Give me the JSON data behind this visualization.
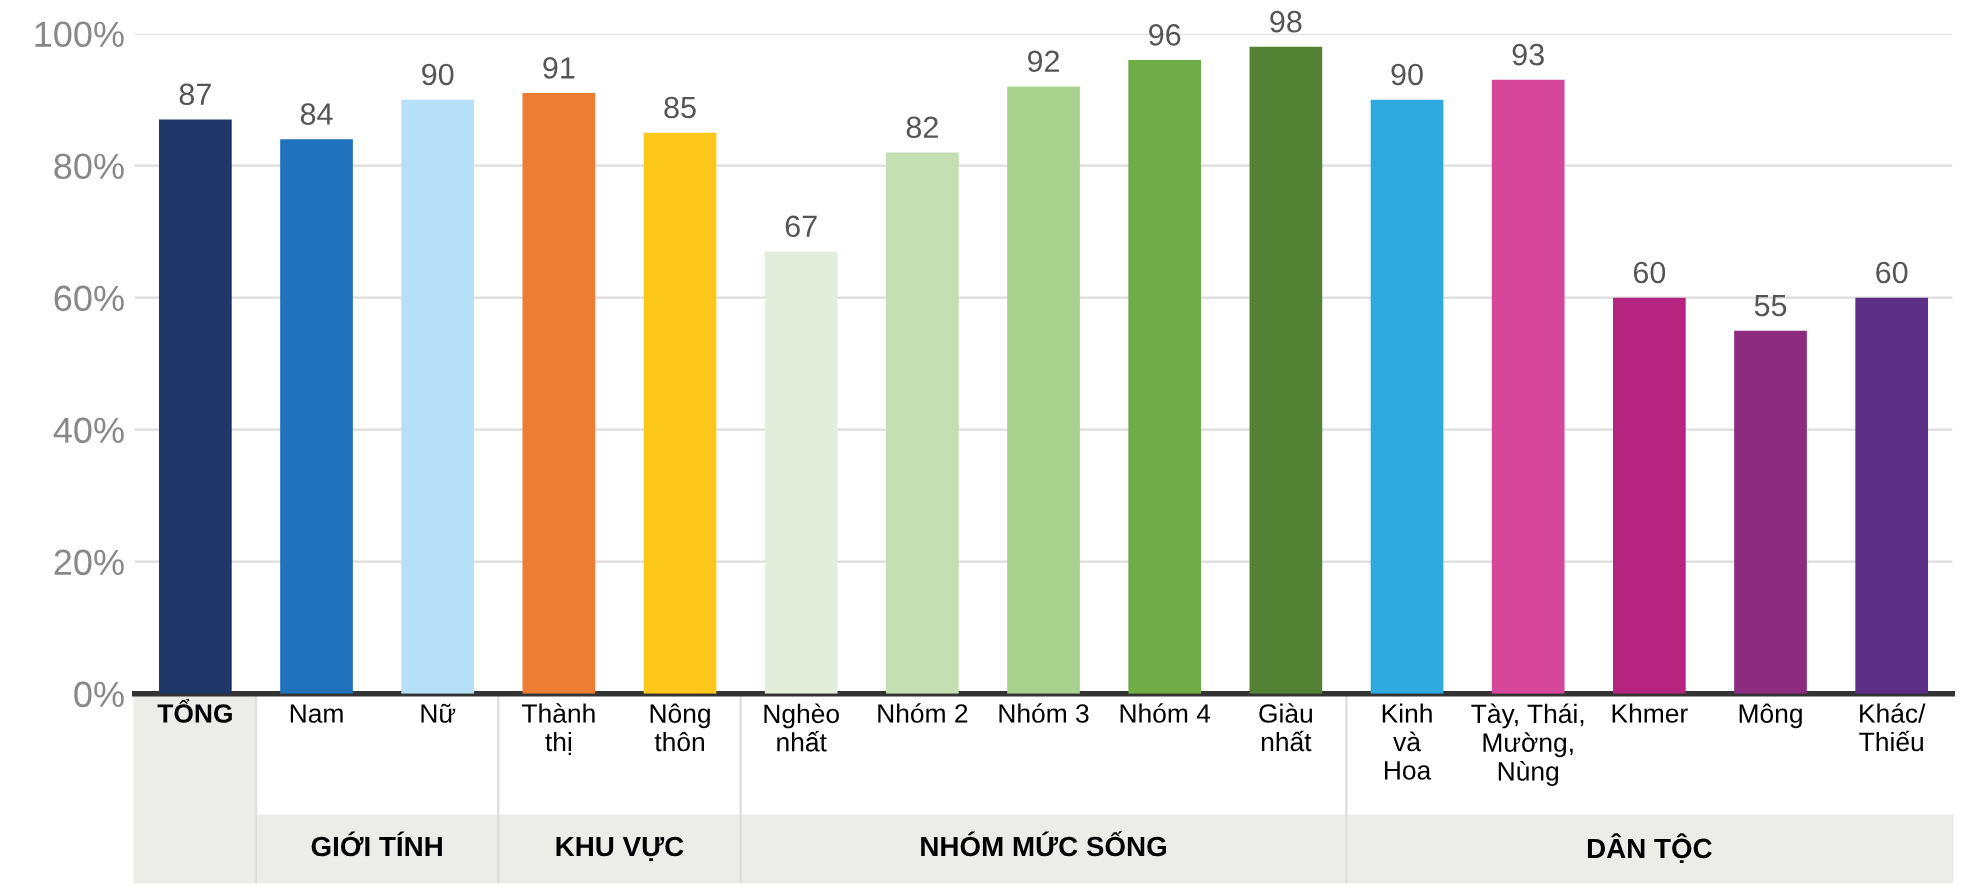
{
  "chart_data": {
    "type": "bar",
    "categories": [
      "TỔNG",
      "Nam",
      "Nữ",
      "Thành\nthị",
      "Nông\nthôn",
      "Nghèo\nnhất",
      "Nhóm 2",
      "Nhóm 3",
      "Nhóm 4",
      "Giàu\nnhất",
      "Kinh\nvà\nHoa",
      "Tày, Thái,\nMường,\nNùng",
      "Khmer",
      "Mông",
      "Khác/\nThiếu"
    ],
    "values": [
      87,
      84,
      90,
      91,
      85,
      67,
      82,
      92,
      96,
      98,
      90,
      93,
      60,
      55,
      60
    ],
    "colors": [
      "#1f3669",
      "#1f72bb",
      "#b5e0f7",
      "#ec7d33",
      "#fdc81a",
      "#e2eedb",
      "#c4e0b2",
      "#a9d18e",
      "#70ad47",
      "#548235",
      "#2eaae1",
      "#d6479a",
      "#b5257f",
      "#8c2b80",
      "#5d2e86"
    ],
    "ylim": [
      0,
      100
    ],
    "yticks": [
      {
        "value": 0,
        "label": "0%"
      },
      {
        "value": 20,
        "label": "20%"
      },
      {
        "value": 40,
        "label": "40%"
      },
      {
        "value": 60,
        "label": "60%"
      },
      {
        "value": 80,
        "label": "80%"
      },
      {
        "value": 100,
        "label": "100%"
      }
    ],
    "grid": "y",
    "data_labels": true,
    "annotations": [
      "GIỚI TÍNH",
      "KHU VỰC",
      "NHÓM MỨC SỐNG",
      "DÂN TỘC"
    ]
  }
}
